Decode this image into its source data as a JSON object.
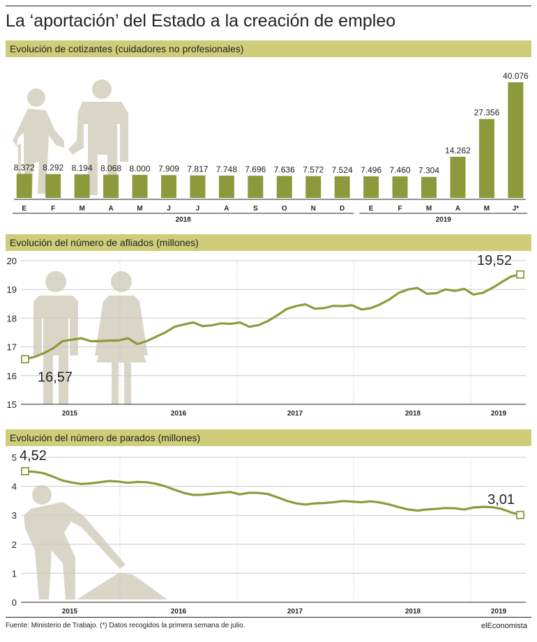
{
  "title": "La ‘aportación’ del Estado a la creación de empleo",
  "footer": {
    "source": "Fuente: Ministerio de Trabajo. (*) Datos recogidos la primera semana de julio.",
    "brand": "elEconomista"
  },
  "colors": {
    "band": "#cfcd79",
    "olive": "#8d9a3c",
    "silhouette": "#d9d6c7",
    "grid": "#bbbbbb",
    "text": "#222222"
  },
  "icons": {
    "chart1": "elderly-caregiver-silhouette-icon",
    "chart2": "man-woman-silhouette-icon",
    "chart3": "worker-shoveling-silhouette-icon"
  },
  "chart_data": [
    {
      "type": "bar",
      "title": "Evolución de cotizantes (cuidadores no profesionales)",
      "categories": [
        "E",
        "F",
        "M",
        "A",
        "M",
        "J",
        "J",
        "A",
        "S",
        "O",
        "N",
        "D",
        "E",
        "F",
        "M",
        "A",
        "M",
        "J*"
      ],
      "group_labels": [
        {
          "label": "2018",
          "from": 0,
          "to": 11
        },
        {
          "label": "2019",
          "from": 12,
          "to": 17
        }
      ],
      "values": [
        8372,
        8292,
        8194,
        8068,
        8000,
        7909,
        7817,
        7748,
        7696,
        7636,
        7572,
        7524,
        7496,
        7460,
        7304,
        14262,
        27356,
        40076
      ],
      "value_labels": [
        "8.372",
        "8.292",
        "8.194",
        "8.068",
        "8.000",
        "7.909",
        "7.817",
        "7.748",
        "7.696",
        "7.636",
        "7.572",
        "7.524",
        "7.496",
        "7.460",
        "7.304",
        "14.262",
        "27.356",
        "40.076"
      ],
      "ylim": [
        0,
        42000
      ],
      "grid": false
    },
    {
      "type": "line",
      "title": "Evolución del número de afliados (millones)",
      "x_labels": [
        "2015",
        "2016",
        "2017",
        "2018",
        "2019"
      ],
      "yticks": [
        "15",
        "16",
        "17",
        "18",
        "19",
        "20"
      ],
      "ylim": [
        15,
        20
      ],
      "values": [
        16.57,
        16.65,
        16.78,
        16.95,
        17.2,
        17.25,
        17.3,
        17.2,
        17.2,
        17.22,
        17.22,
        17.3,
        17.1,
        17.2,
        17.35,
        17.5,
        17.7,
        17.78,
        17.85,
        17.72,
        17.75,
        17.82,
        17.8,
        17.85,
        17.7,
        17.76,
        17.9,
        18.1,
        18.32,
        18.42,
        18.48,
        18.33,
        18.35,
        18.43,
        18.42,
        18.45,
        18.3,
        18.35,
        18.48,
        18.65,
        18.88,
        19.0,
        19.05,
        18.85,
        18.87,
        19.0,
        18.95,
        19.02,
        18.82,
        18.88,
        19.05,
        19.25,
        19.45,
        19.52
      ],
      "first_label": "16,57",
      "last_label": "19,52",
      "grid": true
    },
    {
      "type": "line",
      "title": "Evolución del número de parados (millones)",
      "x_labels": [
        "2015",
        "2016",
        "2017",
        "2018",
        "2019"
      ],
      "yticks": [
        "0",
        "1",
        "2",
        "3",
        "4",
        "5"
      ],
      "ylim": [
        0,
        5
      ],
      "values": [
        4.52,
        4.5,
        4.45,
        4.33,
        4.2,
        4.13,
        4.08,
        4.1,
        4.14,
        4.18,
        4.16,
        4.12,
        4.15,
        4.14,
        4.09,
        4.0,
        3.88,
        3.77,
        3.7,
        3.71,
        3.74,
        3.78,
        3.8,
        3.72,
        3.78,
        3.77,
        3.73,
        3.62,
        3.5,
        3.41,
        3.37,
        3.41,
        3.42,
        3.45,
        3.49,
        3.47,
        3.45,
        3.48,
        3.44,
        3.37,
        3.28,
        3.2,
        3.16,
        3.2,
        3.22,
        3.25,
        3.24,
        3.2,
        3.27,
        3.29,
        3.28,
        3.22,
        3.1,
        3.01
      ],
      "first_label": "4,52",
      "last_label": "3,01",
      "grid": true
    }
  ]
}
